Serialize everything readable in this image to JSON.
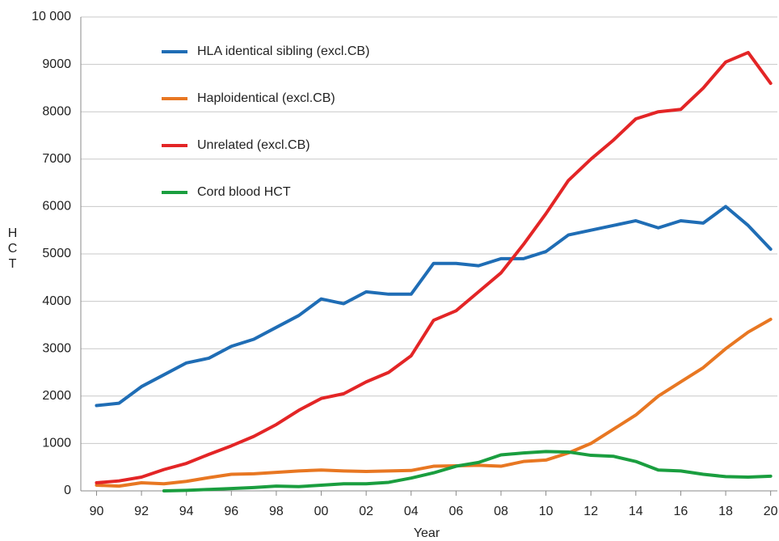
{
  "chart_data": {
    "type": "line",
    "x_label": "Year",
    "y_label": "HCT",
    "x": [
      1990,
      1991,
      1992,
      1993,
      1994,
      1995,
      1996,
      1997,
      1998,
      1999,
      2000,
      2001,
      2002,
      2003,
      2004,
      2005,
      2006,
      2007,
      2008,
      2009,
      2010,
      2011,
      2012,
      2013,
      2014,
      2015,
      2016,
      2017,
      2018,
      2019,
      2020
    ],
    "series": [
      {
        "name": "HLA identical sibling (excl.CB)",
        "color": "#1f6db5",
        "values": [
          1800,
          1850,
          2200,
          2450,
          2700,
          2800,
          3050,
          3200,
          3450,
          3700,
          4050,
          3950,
          4200,
          4150,
          4150,
          4800,
          4800,
          4750,
          4900,
          4900,
          5050,
          5400,
          5500,
          5600,
          5700,
          5550,
          5700,
          5650,
          6000,
          5600,
          5100
        ]
      },
      {
        "name": "Haploidentical (excl.CB)",
        "color": "#e87722",
        "values": [
          120,
          100,
          170,
          150,
          200,
          280,
          350,
          360,
          390,
          420,
          440,
          420,
          410,
          420,
          430,
          520,
          530,
          540,
          520,
          620,
          650,
          800,
          1000,
          1300,
          1600,
          2000,
          2300,
          2600,
          3000,
          3350,
          3620
        ]
      },
      {
        "name": "Unrelated (excl.CB)",
        "color": "#e32526",
        "values": [
          170,
          210,
          290,
          450,
          580,
          770,
          950,
          1150,
          1400,
          1700,
          1950,
          2050,
          2300,
          2500,
          2850,
          3600,
          3800,
          4200,
          4600,
          5200,
          5850,
          6550,
          7000,
          7400,
          7850,
          8000,
          8050,
          8500,
          9050,
          9250,
          8600
        ]
      },
      {
        "name": "Cord blood HCT",
        "color": "#1a9e3f",
        "values": [
          null,
          null,
          null,
          0,
          10,
          30,
          50,
          70,
          100,
          90,
          120,
          150,
          150,
          180,
          270,
          380,
          520,
          600,
          760,
          800,
          830,
          820,
          750,
          730,
          620,
          440,
          420,
          350,
          300,
          290,
          310
        ]
      }
    ],
    "xlim": [
      1989.3,
      2020.3
    ],
    "xticks": [
      {
        "value": 1990,
        "label": "90"
      },
      {
        "value": 1992,
        "label": "92"
      },
      {
        "value": 1994,
        "label": "94"
      },
      {
        "value": 1996,
        "label": "96"
      },
      {
        "value": 1998,
        "label": "98"
      },
      {
        "value": 2000,
        "label": "00"
      },
      {
        "value": 2002,
        "label": "02"
      },
      {
        "value": 2004,
        "label": "04"
      },
      {
        "value": 2006,
        "label": "06"
      },
      {
        "value": 2008,
        "label": "08"
      },
      {
        "value": 2010,
        "label": "10"
      },
      {
        "value": 2012,
        "label": "12"
      },
      {
        "value": 2014,
        "label": "14"
      },
      {
        "value": 2016,
        "label": "16"
      },
      {
        "value": 2018,
        "label": "18"
      },
      {
        "value": 2020,
        "label": "20"
      }
    ],
    "ylim": [
      0,
      10000
    ],
    "yticks": [
      0,
      1000,
      2000,
      3000,
      4000,
      5000,
      6000,
      7000,
      8000,
      9000,
      {
        "value": 10000,
        "label": "10 000"
      }
    ],
    "grid": true,
    "legend": "top-left"
  }
}
